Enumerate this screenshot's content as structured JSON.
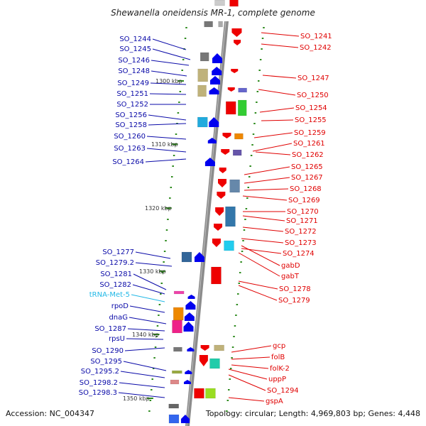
{
  "title": "Shewanella oneidensis MR-1, complete genome",
  "footer": {
    "accession": "Accession: NC_004347",
    "stats": "Topology: circular; Length: 4,969,803 bp; Genes: 4,448"
  },
  "colors": {
    "left_label": "#0a0aa8",
    "right_label": "#e00000",
    "trna_label": "#22b8e6",
    "backbone": "#8c8c8c",
    "tick": "#2e8b1e",
    "strand_forward": "#0000ee",
    "strand_reverse": "#ee0000"
  },
  "positions": [
    "1300 kbp",
    "1310 kbp",
    "1320 kbp",
    "1330 kbp",
    "1340 kbp",
    "1350 kbp"
  ],
  "left_genes": [
    "SO_1244",
    "SO_1245",
    "SO_1246",
    "SO_1248",
    "SO_1249",
    "SO_1251",
    "SO_1252",
    "SO_1256",
    "SO_1258",
    "SO_1260",
    "SO_1263",
    "SO_1264",
    "SO_1277",
    "SO_1279.2",
    "SO_1281",
    "SO_1282",
    "tRNA-Met-5",
    "rpoD",
    "dnaG",
    "SO_1287",
    "rpsU",
    "SO_1290",
    "SO_1295",
    "SO_1295.2",
    "SO_1298.2",
    "SO_1298.3"
  ],
  "right_genes": [
    "SO_1241",
    "SO_1242",
    "SO_1247",
    "SO_1250",
    "SO_1254",
    "SO_1255",
    "SO_1259",
    "SO_1261",
    "SO_1262",
    "SO_1265",
    "SO_1267",
    "SO_1268",
    "SO_1269",
    "SO_1270",
    "SO_1271",
    "SO_1272",
    "SO_1273",
    "SO_1274",
    "gabD",
    "gabT",
    "SO_1278",
    "SO_1279",
    "gcp",
    "folB",
    "folK-2",
    "uppP",
    "SO_1294",
    "gspA"
  ]
}
